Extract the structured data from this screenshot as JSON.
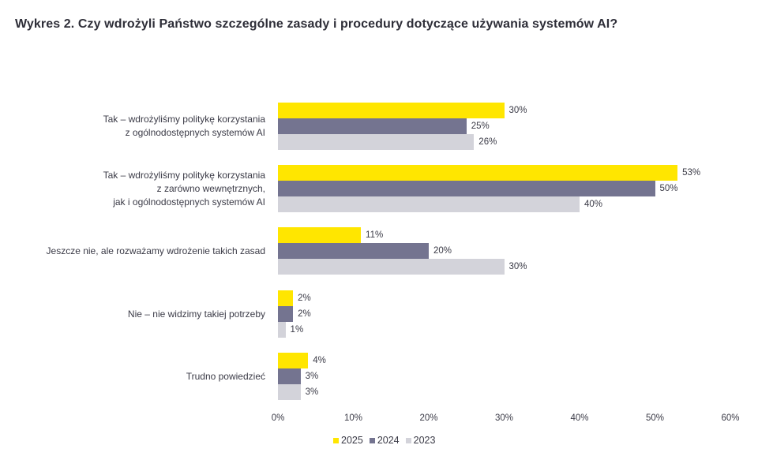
{
  "title": "Wykres 2. Czy wdrożyli Państwo szczególne zasady i procedury dotyczące używania systemów AI?",
  "colors": {
    "2025": "#FFE600",
    "2024": "#747490",
    "2023": "#D3D3DA"
  },
  "chart_data": {
    "type": "bar",
    "orientation": "horizontal",
    "title": "Wykres 2. Czy wdrożyli Państwo szczególne zasady i procedury dotyczące używania systemów AI?",
    "categories": [
      "Tak – wdrożyliśmy politykę korzystania z ogólnodostępnych systemów AI",
      "Tak – wdrożyliśmy politykę korzystania z zarówno wewnętrznych, jak i ogólnodostępnych systemów AI",
      "Jeszcze nie, ale rozważamy wdrożenie takich zasad",
      "Nie – nie widzimy takiej potrzeby",
      "Trudno powiedzieć"
    ],
    "series": [
      {
        "name": "2025",
        "color": "#FFE600",
        "values": [
          30,
          53,
          11,
          2,
          4
        ]
      },
      {
        "name": "2024",
        "color": "#747490",
        "values": [
          25,
          50,
          20,
          2,
          3
        ]
      },
      {
        "name": "2023",
        "color": "#D3D3DA",
        "values": [
          26,
          40,
          30,
          1,
          3
        ]
      }
    ],
    "xlabel": "",
    "ylabel": "",
    "xlim": [
      0,
      60
    ],
    "x_ticks": [
      "0%",
      "10%",
      "20%",
      "30%",
      "40%",
      "50%",
      "60%"
    ],
    "value_format": "percent",
    "grid": false,
    "legend_position": "bottom"
  },
  "labels": [
    "Tak – wdrożyliśmy politykę korzystania\nz ogólnodostępnych systemów AI",
    "Tak – wdrożyliśmy politykę korzystania\nz zarówno wewnętrznych,\njak i ogólnodostępnych systemów AI",
    "Jeszcze nie, ale rozważamy wdrożenie takich zasad",
    "Nie – nie widzimy takiej potrzeby",
    "Trudno powiedzieć"
  ],
  "legend": [
    "2025",
    "2024",
    "2023"
  ]
}
